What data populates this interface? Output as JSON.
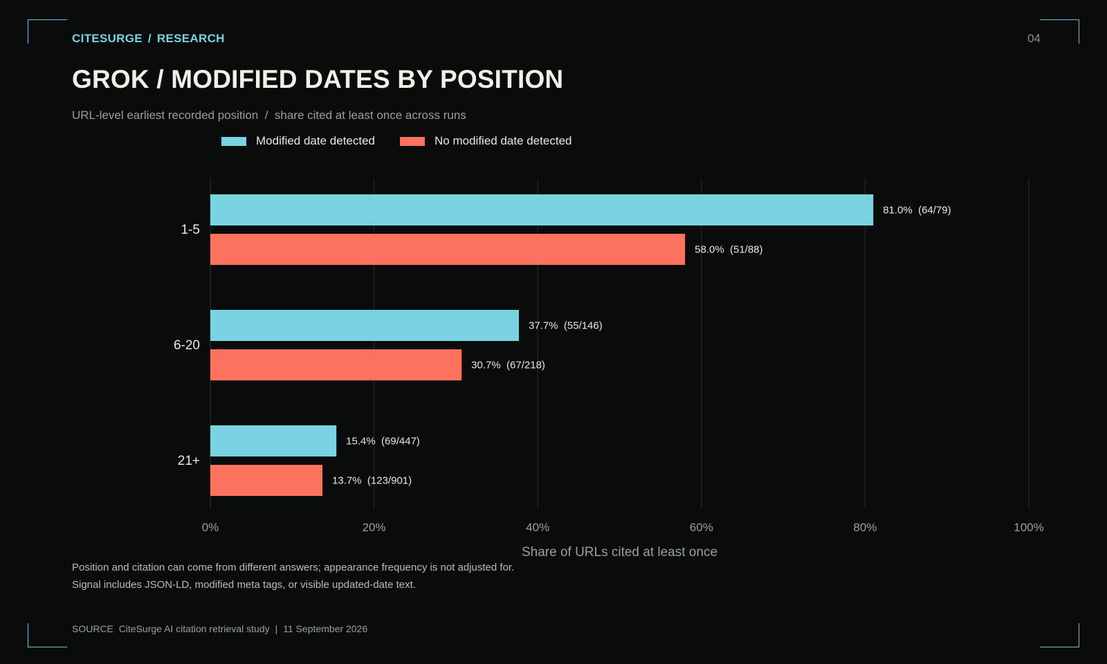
{
  "header": {
    "kicker_brand": "CITESURGE",
    "kicker_section": "RESEARCH",
    "kicker_separator": "/",
    "page_number": "04",
    "title": "GROK / MODIFIED DATES BY POSITION",
    "subtitle": "URL-level earliest recorded position  /  share cited at least once across runs"
  },
  "chart_data": {
    "type": "bar",
    "orientation": "horizontal",
    "categories": [
      "1-5",
      "6-20",
      "21+"
    ],
    "series": [
      {
        "name": "Modified date detected",
        "color": "#79d3e0",
        "values": [
          81.0,
          37.7,
          15.4
        ],
        "labels": [
          "81.0%  (64/79)",
          "37.7%  (55/146)",
          "15.4%  (69/447)"
        ]
      },
      {
        "name": "No modified date detected",
        "color": "#fc725f",
        "values": [
          58.0,
          30.7,
          13.7
        ],
        "labels": [
          "58.0%  (51/88)",
          "30.7%  (67/218)",
          "13.7%  (123/901)"
        ]
      }
    ],
    "xlim": [
      0,
      100
    ],
    "xticks": [
      0,
      20,
      40,
      60,
      80,
      100
    ],
    "xtick_labels": [
      "0%",
      "20%",
      "40%",
      "60%",
      "80%",
      "100%"
    ],
    "xlabel": "Share of URLs cited at least once",
    "grid": "vertical",
    "legend": "top"
  },
  "notes": [
    "Position and citation can come from different answers; appearance frequency is not adjusted for.",
    "Signal includes JSON-LD, modified meta tags, or visible updated-date text."
  ],
  "source": {
    "label": "SOURCE",
    "text": "CiteSurge AI citation retrieval study",
    "separator": "|",
    "date": "11 September 2026"
  }
}
